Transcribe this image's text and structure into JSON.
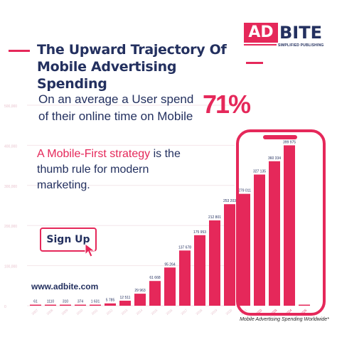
{
  "brand": {
    "logo_box": "AD",
    "logo_text": "BITE",
    "tagline": "SIMPLIFIED PUBLISHING",
    "website": "www.adbite.com"
  },
  "headline": {
    "line1": "The Upward Trajectory Of",
    "line2": "Mobile Advertising Spending"
  },
  "stat": {
    "text_line1": "On an average a User spend",
    "text_line2": "of their online time on Mobile",
    "percent": "71%"
  },
  "strategy": {
    "highlight": "A Mobile-First strategy",
    "rest_line1": " is the",
    "line2": "thumb rule for modern",
    "line3": "marketing."
  },
  "cta": {
    "signup_label": "Sign Up"
  },
  "caption": "Mobile Advertising  Spending Worldwide*",
  "colors": {
    "accent": "#e5285a",
    "navy": "#23305f",
    "bar": "#e5285a",
    "faded_bar": "#f7c6d3"
  },
  "icons": [
    "cursor-icon",
    "phone-frame"
  ],
  "chart_data": {
    "type": "bar",
    "title": "",
    "xlabel": "",
    "ylabel": "",
    "ylim": [
      0,
      500000
    ],
    "y_ticks": [
      "0",
      "100,000",
      "200,000",
      "300,000",
      "400,000",
      "500,000"
    ],
    "categories": [
      "2007",
      "2008",
      "2009",
      "2010",
      "2011",
      "2012",
      "2013",
      "2014",
      "2015",
      "2016",
      "2017",
      "2018",
      "2019",
      "2020",
      "2021",
      "2022",
      "2023",
      "2024",
      "2025"
    ],
    "value_labels": [
      "61",
      "1110",
      "310",
      "374",
      "1 631",
      "5 785",
      "12 511",
      "29 963",
      "61 668",
      "95 264",
      "137 678",
      "175 953",
      "212 801",
      "253 203",
      "279 011",
      "327 135",
      "360 334",
      "399 975",
      ""
    ],
    "values": [
      61,
      1110,
      310,
      374,
      1631,
      5785,
      12511,
      29963,
      61668,
      95264,
      137678,
      175953,
      212801,
      253203,
      279011,
      327135,
      360334,
      399975,
      0
    ]
  }
}
